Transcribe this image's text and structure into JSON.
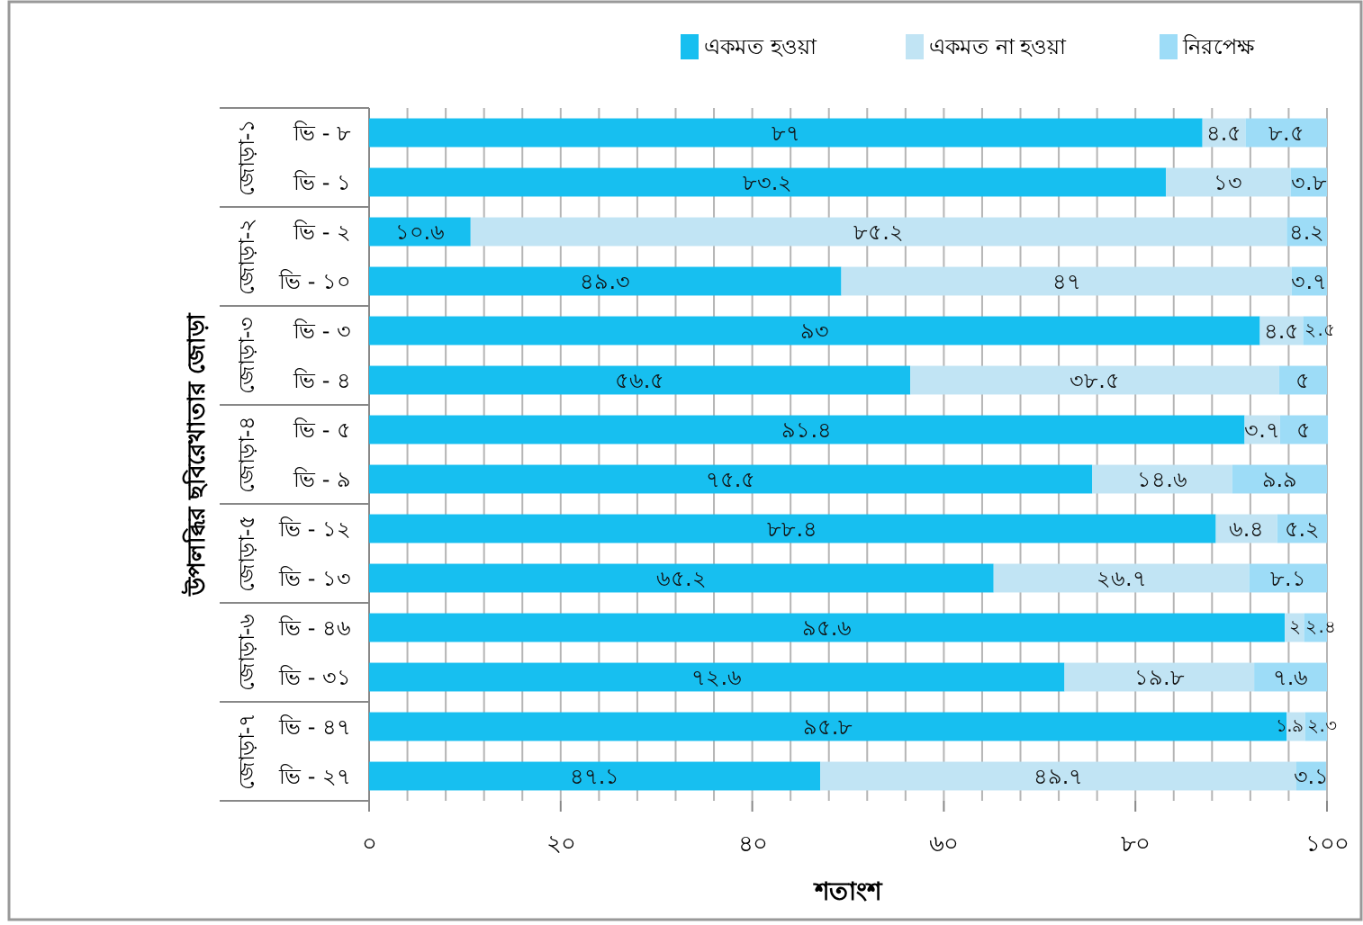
{
  "chart_data": {
    "type": "bar",
    "orientation": "horizontal",
    "stacked": true,
    "xlabel": "শতাংশ",
    "ylabel": "উপলব্ধির ছবিরেখাতার জোড়া",
    "categories": [
      "ভি - ৮",
      "ভি - ১",
      "ভি - ২",
      "ভি - ১০",
      "ভি - ৩",
      "ভি - ৪",
      "ভি - ৫",
      "ভি - ৯",
      "ভি - ১২",
      "ভি - ১৩",
      "ভি - ৪৬",
      "ভি - ৩১",
      "ভি - ৪৭",
      "ভি - ২৭"
    ],
    "annotations": [
      "জোড়া-১",
      "জোড়া-২",
      "জোড়া-৩",
      "জোড়া-৪",
      "জোড়া-৫",
      "জোড়া-৬",
      "জোড়া-৭"
    ],
    "series": [
      {
        "name": "একমত হওয়া",
        "color": "#17bff0",
        "values": [
          87,
          83.2,
          10.6,
          49.3,
          93,
          56.5,
          91.4,
          75.5,
          88.4,
          65.2,
          95.6,
          72.6,
          95.8,
          47.1
        ],
        "value_labels": [
          "৮৭",
          "৮৩.২",
          "১০.৬",
          "৪৯.৩",
          "৯৩",
          "৫৬.৫",
          "৯১.৪",
          "৭৫.৫",
          "৮৮.৪",
          "৬৫.২",
          "৯৫.৬",
          "৭২.৬",
          "৯৫.৮",
          "৪৭.১"
        ]
      },
      {
        "name": "একমত না হওয়া",
        "color": "#c1e4f4",
        "values": [
          4.5,
          13,
          85.2,
          47,
          4.5,
          38.5,
          3.7,
          14.6,
          6.4,
          26.7,
          2,
          19.8,
          1.9,
          49.7
        ],
        "value_labels": [
          "৪.৫",
          "১৩",
          "৮৫.২",
          "৪৭",
          "৪.৫",
          "৩৮.৫",
          "৩.৭",
          "১৪.৬",
          "৬.৪",
          "২৬.৭",
          "২",
          "১৯.৮",
          "১.৯",
          "৪৯.৭"
        ]
      },
      {
        "name": "নিরপেক্ষ",
        "color": "#9ddcf7",
        "values": [
          8.5,
          3.8,
          4.2,
          3.7,
          2.5,
          5,
          5,
          9.9,
          5.2,
          8.1,
          2.4,
          7.6,
          2.3,
          3.1
        ],
        "value_labels": [
          "৮.৫",
          "৩.৮",
          "৪.২",
          "৩.৭",
          "২.৫",
          "৫",
          "৫",
          "৯.৯",
          "৫.২",
          "৮.১",
          "২.৪",
          "৭.৬",
          "২.৩",
          "৩.১"
        ]
      }
    ],
    "xlim": [
      0,
      100
    ],
    "xticks": [
      {
        "value": 0,
        "label": "০"
      },
      {
        "value": 4,
        "label": null
      },
      {
        "value": 8,
        "label": null
      },
      {
        "value": 12,
        "label": null
      },
      {
        "value": 16,
        "label": null
      },
      {
        "value": 20,
        "label": "২০"
      },
      {
        "value": 24,
        "label": null
      },
      {
        "value": 28,
        "label": null
      },
      {
        "value": 32,
        "label": null
      },
      {
        "value": 36,
        "label": null
      },
      {
        "value": 40,
        "label": "৪০"
      },
      {
        "value": 44,
        "label": null
      },
      {
        "value": 48,
        "label": null
      },
      {
        "value": 52,
        "label": null
      },
      {
        "value": 56,
        "label": null
      },
      {
        "value": 60,
        "label": "৬০"
      },
      {
        "value": 64,
        "label": null
      },
      {
        "value": 68,
        "label": null
      },
      {
        "value": 72,
        "label": null
      },
      {
        "value": 76,
        "label": null
      },
      {
        "value": 80,
        "label": "৮০"
      },
      {
        "value": 84,
        "label": null
      },
      {
        "value": 88,
        "label": null
      },
      {
        "value": 92,
        "label": null
      },
      {
        "value": 96,
        "label": null
      },
      {
        "value": 100,
        "label": "১০০"
      }
    ],
    "grid": "x",
    "legend": "top"
  }
}
